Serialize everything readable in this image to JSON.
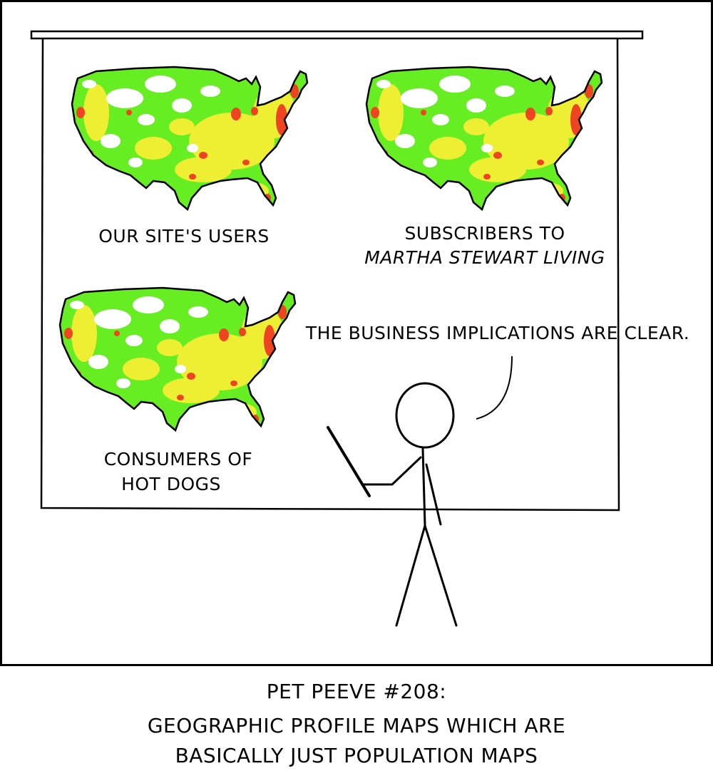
{
  "panel": {
    "maps": [
      {
        "label_lines": [
          "OUR SITE'S USERS"
        ],
        "italic_line": null
      },
      {
        "label_lines": [
          "SUBSCRIBERS TO"
        ],
        "italic_line": "MARTHA STEWART LIVING"
      },
      {
        "label_lines": [
          "CONSUMERS OF",
          "HOT DOGS"
        ],
        "italic_line": null
      }
    ],
    "speech": "THE BUSINESS IMPLICATIONS ARE CLEAR."
  },
  "caption": {
    "line1": "PET PEEVE #208:",
    "line2": "GEOGRAPHIC PROFILE MAPS WHICH ARE",
    "line3": "BASICALLY JUST POPULATION MAPS"
  },
  "colors": {
    "low": "#66ee22",
    "mid": "#eeee33",
    "high": "#ee4422",
    "ink": "#000000"
  }
}
